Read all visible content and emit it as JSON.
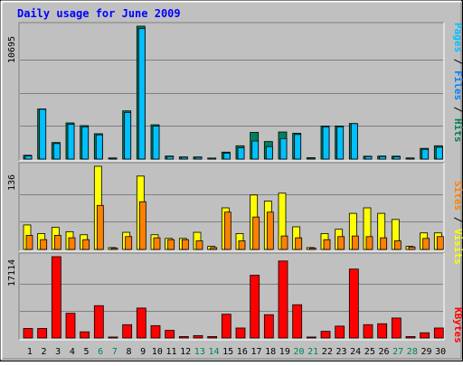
{
  "chart_data": {
    "type": "bar",
    "title": "Daily usage for June 2009",
    "categories": [
      "1",
      "2",
      "3",
      "4",
      "5",
      "6",
      "7",
      "8",
      "9",
      "10",
      "11",
      "12",
      "13",
      "14",
      "15",
      "16",
      "17",
      "18",
      "19",
      "20",
      "21",
      "22",
      "23",
      "24",
      "25",
      "26",
      "27",
      "28",
      "29",
      "30"
    ],
    "weekend_days": [
      "6",
      "7",
      "13",
      "14",
      "20",
      "21",
      "27",
      "28"
    ],
    "panels": [
      {
        "name": "hits-files-pages",
        "ymax_label": "10695",
        "ymax": 10695,
        "series": [
          {
            "name": "Hits",
            "color": "#00805c",
            "values": [
              305,
              4030,
              1330,
              2910,
              2690,
              2040,
              90,
              3880,
              10695,
              2760,
              240,
              170,
              170,
              80,
              560,
              1070,
              2150,
              1410,
              2180,
              2080,
              110,
              2650,
              2660,
              2860,
              230,
              240,
              230,
              90,
              860,
              1070
            ]
          },
          {
            "name": "Files",
            "color": "#0080ff",
            "values": [
              250,
              4000,
              1250,
              2800,
              2600,
              1950,
              70,
              3750,
              10500,
              2650,
              200,
              140,
              140,
              60,
              480,
              900,
              1450,
              1000,
              1650,
              1980,
              80,
              2600,
              2600,
              2850,
              200,
              200,
              180,
              70,
              780,
              950
            ]
          },
          {
            "name": "Pages",
            "color": "#00c0ff",
            "values": [
              250,
              4000,
              1250,
              2800,
              2600,
              1950,
              70,
              3750,
              10500,
              2650,
              200,
              140,
              140,
              60,
              480,
              900,
              1450,
              1000,
              1650,
              1980,
              80,
              2600,
              2600,
              2850,
              200,
              200,
              180,
              70,
              780,
              950
            ]
          }
        ]
      },
      {
        "name": "visits-sites",
        "ymax_label": "136",
        "ymax": 136,
        "series": [
          {
            "name": "Visits",
            "color": "#ffff00",
            "values": [
              40,
              26,
              36,
              29,
              24,
              136,
              3,
              28,
              120,
              24,
              18,
              18,
              28,
              5,
              68,
              26,
              89,
              79,
              92,
              37,
              3,
              26,
              33,
              59,
              68,
              59,
              49,
              5,
              27,
              27
            ]
          },
          {
            "name": "Sites",
            "color": "#ff8000",
            "values": [
              23,
              16,
              23,
              19,
              16,
              72,
              2,
              21,
              78,
              19,
              16,
              16,
              14,
              3,
              61,
              14,
              53,
              61,
              22,
              19,
              2,
              16,
              21,
              22,
              21,
              19,
              14,
              4,
              18,
              21
            ]
          }
        ]
      },
      {
        "name": "kbytes",
        "ymax_label": "17114",
        "ymax": 17114,
        "series": [
          {
            "name": "KBytes",
            "color": "#ff0000",
            "values": [
              2000,
              2000,
              17114,
              5200,
              1300,
              6800,
              200,
              2800,
              6300,
              2600,
              1600,
              300,
              500,
              300,
              5000,
              2100,
              13200,
              4900,
              16200,
              7000,
              200,
              1400,
              2500,
              14500,
              2800,
              3000,
              4200,
              300,
              1100,
              2100
            ]
          }
        ]
      }
    ],
    "legend_right": {
      "top": [
        {
          "text": "Pages",
          "color": "#00c0ff"
        },
        {
          "text": " / ",
          "color": "#000000"
        },
        {
          "text": "Files",
          "color": "#0080ff"
        },
        {
          "text": " / ",
          "color": "#000000"
        },
        {
          "text": "Hits",
          "color": "#00805c"
        }
      ],
      "middle": [
        {
          "text": "Sites",
          "color": "#ff8000"
        },
        {
          "text": " / ",
          "color": "#000000"
        },
        {
          "text": "Visits",
          "color": "#ffff00"
        }
      ],
      "bottom": [
        {
          "text": "KBytes",
          "color": "#ff0000"
        }
      ]
    },
    "colors": {
      "background": "#c0c0c0",
      "title": "#0000ff",
      "weekday_label": "#000000",
      "weekend_label": "#00805c",
      "gridline": "#808080"
    },
    "grid": true
  }
}
